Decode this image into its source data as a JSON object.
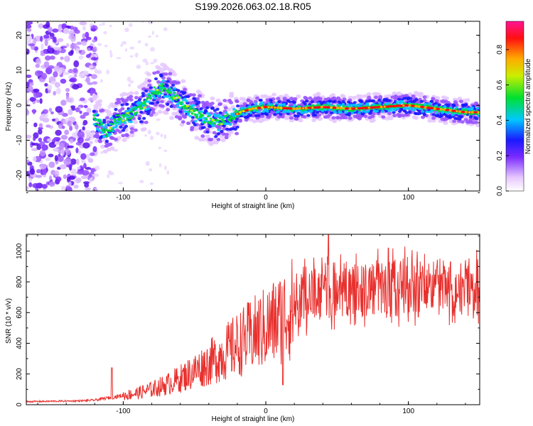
{
  "title": "S199.2026.063.02.18.R05",
  "chart_data": [
    {
      "type": "heatmap",
      "name": "spectrogram",
      "xlabel": "Height of straight line (km)",
      "ylabel": "Frequency (Hz)",
      "xlim": [
        -168,
        150
      ],
      "ylim": [
        -24.5,
        24
      ],
      "xticks": [
        -100,
        0,
        100
      ],
      "yticks": [
        -20,
        -10,
        0,
        10,
        20
      ],
      "colorbar": {
        "label": "Normalized spectral amplitude",
        "range": [
          0,
          0.96
        ],
        "ticks": [
          0.0,
          0.2,
          0.4,
          0.6,
          0.8
        ]
      },
      "ridge": {
        "x": [
          -120,
          -115,
          -112,
          -105,
          -95,
          -85,
          -78,
          -72,
          -65,
          -58,
          -50,
          -42,
          -35,
          -28,
          -22,
          -18,
          -10,
          0,
          20,
          40,
          60,
          80,
          100,
          120,
          140,
          150
        ],
        "freq": [
          -4,
          -6,
          -8,
          -4,
          -3,
          0,
          4,
          5,
          3,
          0,
          -2,
          -4,
          -5,
          -4,
          -3,
          -2,
          -1,
          -0.5,
          -1,
          -0.5,
          -1,
          -0.5,
          0,
          -1,
          -2,
          -2
        ]
      },
      "noise_region_x": [
        -168,
        -123
      ]
    },
    {
      "type": "line",
      "name": "snr",
      "xlabel": "Height of straight line (km)",
      "ylabel": "SNR (10 * v/v)",
      "xlim": [
        -168,
        150
      ],
      "ylim": [
        0,
        1110
      ],
      "xticks": [
        -100,
        0,
        100
      ],
      "yticks": [
        0,
        200,
        400,
        600,
        800,
        1000
      ],
      "color": "#e8302d",
      "trend": {
        "x": [
          -168,
          -130,
          -120,
          -110,
          -100,
          -90,
          -80,
          -70,
          -60,
          -50,
          -40,
          -30,
          -20,
          -10,
          0,
          10,
          20,
          30,
          40,
          60,
          80,
          100,
          120,
          150
        ],
        "y": [
          20,
          25,
          30,
          45,
          60,
          75,
          100,
          130,
          170,
          220,
          270,
          330,
          390,
          450,
          500,
          560,
          640,
          700,
          740,
          760,
          760,
          770,
          760,
          760
        ]
      },
      "peaks": [
        {
          "x": -108,
          "y": 240
        },
        {
          "x": 12,
          "y": 130
        },
        {
          "x": 44,
          "y": 1110
        }
      ]
    }
  ]
}
